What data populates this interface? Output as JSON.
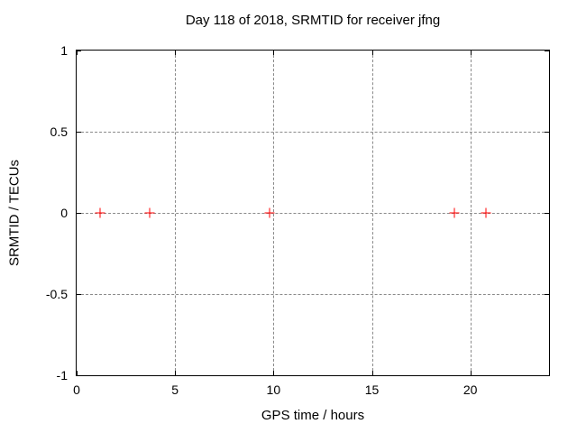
{
  "chart_data": {
    "type": "scatter",
    "title": "Day 118 of 2018, SRMTID for receiver jfng",
    "xlabel": "GPS time / hours",
    "ylabel": "SRMTID / TECUs",
    "xlim": [
      0,
      24
    ],
    "ylim": [
      -1,
      1
    ],
    "xticks": [
      0,
      5,
      10,
      15,
      20
    ],
    "xtick_labels": [
      "0",
      "5",
      "10",
      "15",
      "20"
    ],
    "yticks": [
      -1,
      -0.5,
      0,
      0.5,
      1
    ],
    "ytick_labels": [
      "-1",
      "-0.5",
      "0",
      "0.5",
      "1"
    ],
    "grid": true,
    "legend": "none",
    "marker": "plus",
    "points": {
      "x": [
        1.2,
        3.7,
        9.8,
        19.2,
        20.8
      ],
      "y": [
        0,
        0,
        0,
        0,
        0
      ]
    }
  },
  "colors": {
    "marker": "#ff0000",
    "grid": "#8a8a8a",
    "axis": "#000000",
    "text": "#000000",
    "background": "#ffffff"
  }
}
